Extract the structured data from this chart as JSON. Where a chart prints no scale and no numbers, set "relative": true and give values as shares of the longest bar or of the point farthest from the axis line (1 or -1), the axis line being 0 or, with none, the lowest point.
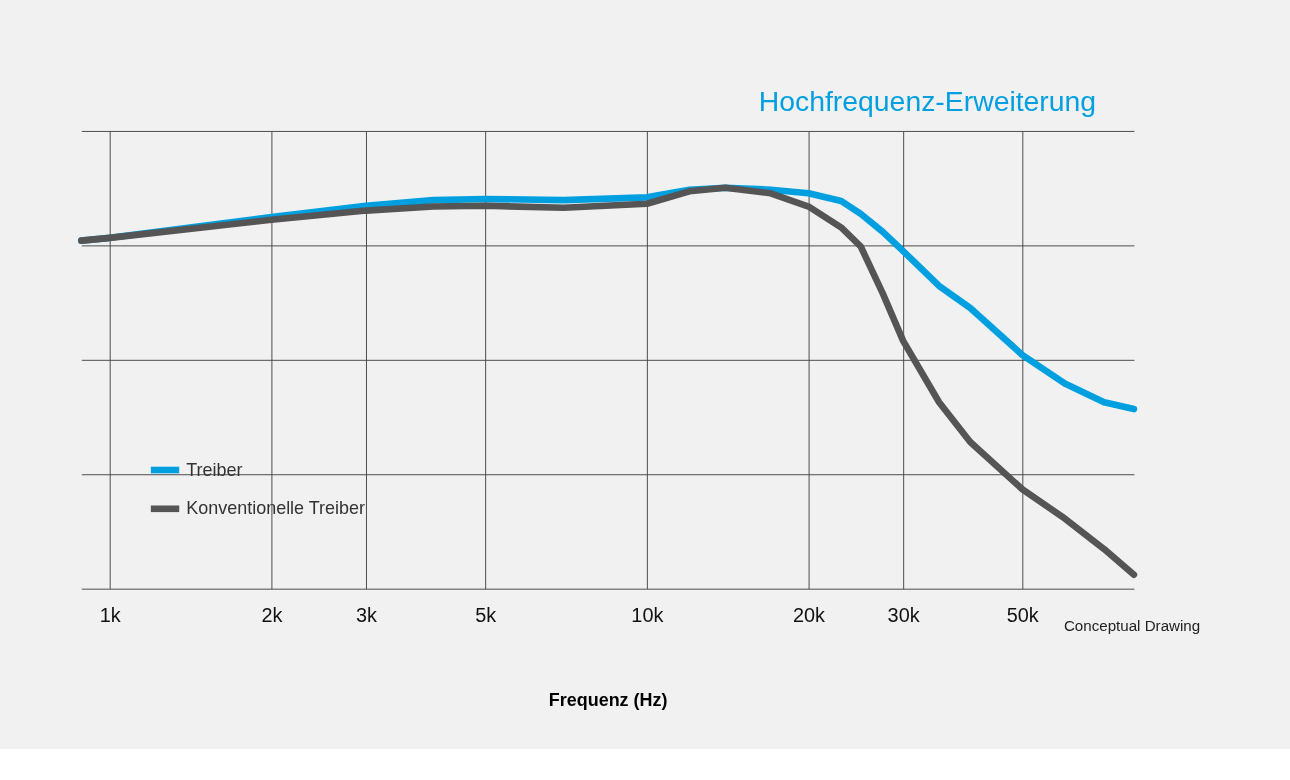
{
  "chart_data": {
    "type": "line",
    "relative": true,
    "xlabel": "Frequenz (Hz)",
    "log": "x",
    "grid": true,
    "legend": "bottom left",
    "marker": "none",
    "line_style": "solid",
    "xlim": [
      885,
      80700
    ],
    "xticks": [
      {
        "value": 1000,
        "label": "1k"
      },
      {
        "value": 2000,
        "label": "2k"
      },
      {
        "value": 3000,
        "label": "3k"
      },
      {
        "value": 5000,
        "label": "5k"
      },
      {
        "value": 10000,
        "label": "10k"
      },
      {
        "value": 20000,
        "label": "20k"
      },
      {
        "value": 30000,
        "label": "30k"
      },
      {
        "value": 50000,
        "label": "50k"
      }
    ],
    "x": [
      885,
      1000,
      2000,
      3000,
      4000,
      5000,
      7000,
      10000,
      12000,
      14000,
      17000,
      20000,
      23000,
      25000,
      27500,
      30000,
      35000,
      40000,
      50000,
      60000,
      71000,
      80700
    ],
    "series": [
      {
        "name": "Treiber",
        "color": "#00a0e0",
        "values": [
          0.868,
          0.875,
          0.927,
          0.955,
          0.969,
          0.972,
          0.969,
          0.976,
          0.995,
          1.0,
          0.995,
          0.986,
          0.967,
          0.935,
          0.89,
          0.842,
          0.755,
          0.7,
          0.583,
          0.512,
          0.465,
          0.448
        ]
      },
      {
        "name": "Konventionelle Treiber",
        "color": "#555555",
        "values": [
          0.868,
          0.875,
          0.92,
          0.943,
          0.953,
          0.955,
          0.95,
          0.96,
          0.991,
          1.0,
          0.986,
          0.953,
          0.901,
          0.854,
          0.736,
          0.618,
          0.465,
          0.366,
          0.248,
          0.175,
          0.099,
          0.035
        ]
      }
    ],
    "annotations": [
      "Hochfrequenz-Erweiterung",
      "Conceptual Drawing"
    ]
  }
}
